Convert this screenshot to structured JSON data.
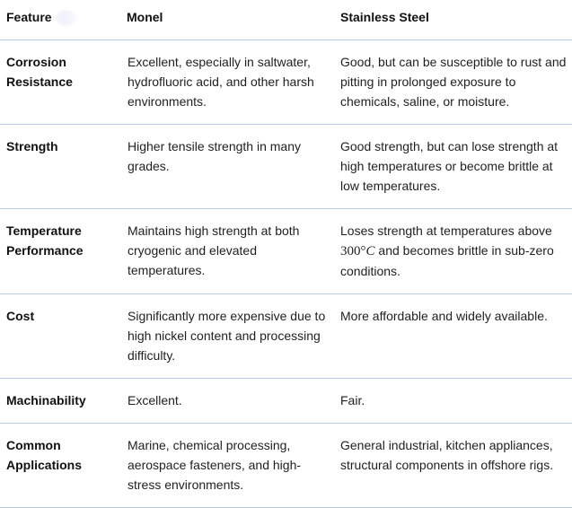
{
  "table": {
    "headers": [
      "Feature",
      "Monel",
      "Stainless Steel"
    ],
    "rows": [
      {
        "feature": "Corrosion Resistance",
        "monel": "Excellent, especially in saltwater, hydrofluoric acid, and other harsh environments.",
        "stainless": "Good, but can be susceptible to rust and pitting in prolonged exposure to chemicals, saline, or moisture."
      },
      {
        "feature": "Strength",
        "monel": "Higher tensile strength in many grades.",
        "stainless": "Good strength, but can lose strength at high temperatures or become brittle at low temperatures."
      },
      {
        "feature": "Temperature Performance",
        "monel": "Maintains high strength at both cryogenic and elevated temperatures.",
        "stainless_pre": "Loses strength at temperatures above",
        "stainless_math_num": "300°",
        "stainless_math_unit": "C",
        "stainless_post": "and becomes brittle in sub-zero conditions."
      },
      {
        "feature": "Cost",
        "monel": "Significantly more expensive due to high nickel content and processing difficulty.",
        "stainless": "More affordable and widely available."
      },
      {
        "feature": "Machinability",
        "monel": "Excellent.",
        "stainless": "Fair."
      },
      {
        "feature": "Common Applications",
        "monel": "Marine, chemical processing, aerospace fasteners, and high-stress environments.",
        "stainless": "General industrial, kitchen appliances, structural components in offshore rigs."
      }
    ]
  },
  "colors": {
    "divider": "#b9cde0",
    "text": "#1f1f1f"
  }
}
